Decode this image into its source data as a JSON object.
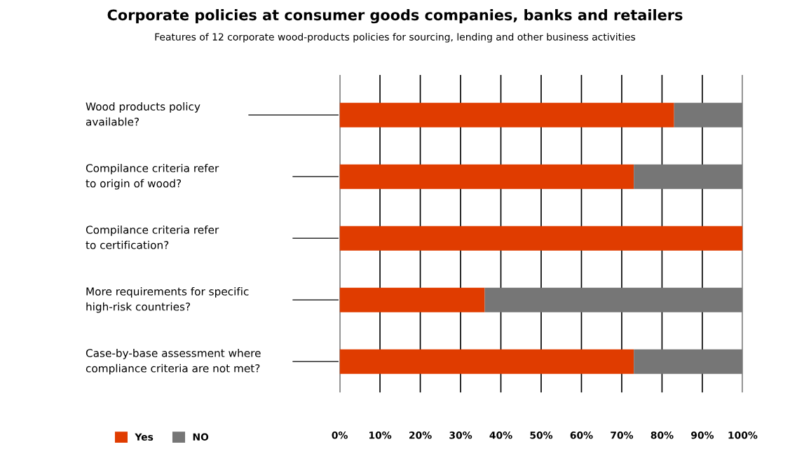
{
  "chart_data": {
    "type": "bar",
    "orientation": "horizontal",
    "stacked": true,
    "title": "Corporate policies at consumer goods companies, banks and retailers",
    "subtitle": "Features of 12 corporate wood-products policies for sourcing, lending and other business activities",
    "categories": [
      "Wood products policy\navailable?",
      "Compilance criteria refer\nto origin of wood?",
      "Compilance criteria refer\nto certification?",
      "More requirements for specific\nhigh-risk countries?",
      "Case-by-base assessment where\ncompliance criteria are not met?"
    ],
    "series": [
      {
        "name": "Yes",
        "color": "#e03c00",
        "values": [
          83,
          73,
          100,
          36,
          73
        ]
      },
      {
        "name": "NO",
        "color": "#767676",
        "values": [
          17,
          27,
          0,
          64,
          27
        ]
      }
    ],
    "xlim": [
      0,
      100
    ],
    "xticks": [
      {
        "value": 0,
        "label": "0%"
      },
      {
        "value": 10,
        "label": "10%"
      },
      {
        "value": 20,
        "label": "20%"
      },
      {
        "value": 30,
        "label": "30%"
      },
      {
        "value": 40,
        "label": "40%"
      },
      {
        "value": 50,
        "label": "50%"
      },
      {
        "value": 60,
        "label": "60%"
      },
      {
        "value": 70,
        "label": "70%"
      },
      {
        "value": 80,
        "label": "80%"
      },
      {
        "value": 90,
        "label": "90%"
      },
      {
        "value": 100,
        "label": "100%"
      }
    ],
    "grid": "x",
    "legend": "bottom left"
  }
}
